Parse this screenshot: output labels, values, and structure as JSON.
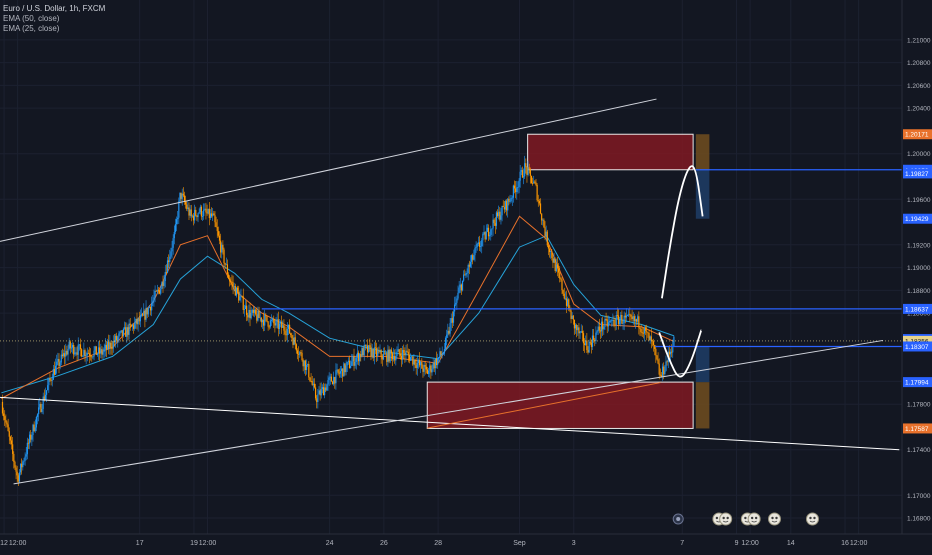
{
  "legend": {
    "symbol": "Euro / U.S. Dollar, 1h, FXCM",
    "ema50": "EMA (50, close)",
    "ema25": "EMA (25, close)"
  },
  "colors": {
    "background": "#131722",
    "candle_up": "#2196f3",
    "candle_down": "#ff9800",
    "ema50": "#26a2d8",
    "ema25": "#e8712b",
    "zone_fill": "#801922",
    "level_line": "#2962ff",
    "trendline": "#d1d4dc",
    "axis_text": "#b2b5be"
  },
  "chart_data": {
    "type": "candlestick",
    "symbol": "Euro / U.S. Dollar",
    "timeframe": "1h",
    "source": "FXCM",
    "indicators": [
      "EMA (50, close)",
      "EMA (25, close)"
    ],
    "ylim": [
      1.1666,
      1.2135
    ],
    "xlim_days": [
      11.85,
      45.1
    ],
    "x_ticks": [
      {
        "label": "12",
        "t": 12.0
      },
      {
        "label": "12:00",
        "t": 12.5
      },
      {
        "label": "17",
        "t": 17.0
      },
      {
        "label": "19",
        "t": 19.0
      },
      {
        "label": "12:00",
        "t": 19.5
      },
      {
        "label": "24",
        "t": 24.0
      },
      {
        "label": "26",
        "t": 26.0
      },
      {
        "label": "28",
        "t": 28.0
      },
      {
        "label": "Sep",
        "t": 31.0
      },
      {
        "label": "3",
        "t": 33.0
      },
      {
        "label": "7",
        "t": 37.0
      },
      {
        "label": "9",
        "t": 39.0
      },
      {
        "label": "12:00",
        "t": 39.5
      },
      {
        "label": "14",
        "t": 41.0
      },
      {
        "label": "16",
        "t": 43.0
      },
      {
        "label": "12:00",
        "t": 43.5
      }
    ],
    "y_ticks": [
      "1.16800",
      "1.17000",
      "1.17400",
      "1.17800",
      "1.18000",
      "1.18600",
      "1.18800",
      "1.19000",
      "1.19200",
      "1.19600",
      "1.20000",
      "1.20400",
      "1.20600",
      "1.20800",
      "1.21000"
    ],
    "price_labels": [
      {
        "value": "1.20171",
        "color": "#e8712b"
      },
      {
        "value": "1.19859",
        "color": "#2962ff"
      },
      {
        "value": "1.19827",
        "color": "#2962ff"
      },
      {
        "value": "1.19429",
        "color": "#2962ff"
      },
      {
        "value": "1.18637",
        "color": "#2962ff"
      },
      {
        "value": "1.18372",
        "color": "#2962ff"
      },
      {
        "value": "1.18356",
        "color": "#e8d48a"
      },
      {
        "value": "1.18307",
        "color": "#2962ff"
      },
      {
        "value": "1.17994",
        "color": "#2962ff"
      },
      {
        "value": "1.17587",
        "color": "#e8712b"
      }
    ],
    "price_path": [
      {
        "t": 11.9,
        "p": 1.1782
      },
      {
        "t": 12.5,
        "p": 1.1715
      },
      {
        "t": 13.2,
        "p": 1.1768
      },
      {
        "t": 13.8,
        "p": 1.1808
      },
      {
        "t": 14.4,
        "p": 1.183
      },
      {
        "t": 15.0,
        "p": 1.1826
      },
      {
        "t": 15.6,
        "p": 1.1825
      },
      {
        "t": 16.3,
        "p": 1.184
      },
      {
        "t": 17.1,
        "p": 1.1855
      },
      {
        "t": 17.8,
        "p": 1.1884
      },
      {
        "t": 18.3,
        "p": 1.193
      },
      {
        "t": 18.5,
        "p": 1.1965
      },
      {
        "t": 18.9,
        "p": 1.1944
      },
      {
        "t": 19.2,
        "p": 1.195
      },
      {
        "t": 19.7,
        "p": 1.1944
      },
      {
        "t": 20.3,
        "p": 1.189
      },
      {
        "t": 21.0,
        "p": 1.186
      },
      {
        "t": 21.8,
        "p": 1.1852
      },
      {
        "t": 22.5,
        "p": 1.1845
      },
      {
        "t": 23.2,
        "p": 1.181
      },
      {
        "t": 23.5,
        "p": 1.1785
      },
      {
        "t": 24.0,
        "p": 1.18
      },
      {
        "t": 24.6,
        "p": 1.1812
      },
      {
        "t": 25.3,
        "p": 1.1828
      },
      {
        "t": 26.0,
        "p": 1.1822
      },
      {
        "t": 26.8,
        "p": 1.1825
      },
      {
        "t": 27.6,
        "p": 1.1808
      },
      {
        "t": 28.2,
        "p": 1.1826
      },
      {
        "t": 28.8,
        "p": 1.1882
      },
      {
        "t": 29.4,
        "p": 1.1915
      },
      {
        "t": 30.0,
        "p": 1.1938
      },
      {
        "t": 30.6,
        "p": 1.1958
      },
      {
        "t": 31.2,
        "p": 1.1988
      },
      {
        "t": 31.6,
        "p": 1.197
      },
      {
        "t": 32.0,
        "p": 1.1925
      },
      {
        "t": 32.6,
        "p": 1.188
      },
      {
        "t": 33.0,
        "p": 1.185
      },
      {
        "t": 33.5,
        "p": 1.183
      },
      {
        "t": 34.0,
        "p": 1.1848
      },
      {
        "t": 34.7,
        "p": 1.1855
      },
      {
        "t": 35.4,
        "p": 1.1852
      },
      {
        "t": 35.9,
        "p": 1.1832
      },
      {
        "t": 36.2,
        "p": 1.1803
      },
      {
        "t": 36.7,
        "p": 1.1836
      }
    ],
    "ema50_path": [
      {
        "t": 11.9,
        "p": 1.179
      },
      {
        "t": 14.0,
        "p": 1.1805
      },
      {
        "t": 16.0,
        "p": 1.1822
      },
      {
        "t": 17.5,
        "p": 1.185
      },
      {
        "t": 18.5,
        "p": 1.189
      },
      {
        "t": 19.5,
        "p": 1.191
      },
      {
        "t": 20.5,
        "p": 1.1895
      },
      {
        "t": 21.5,
        "p": 1.1872
      },
      {
        "t": 22.5,
        "p": 1.186
      },
      {
        "t": 24.0,
        "p": 1.1838
      },
      {
        "t": 26.0,
        "p": 1.1826
      },
      {
        "t": 28.0,
        "p": 1.182
      },
      {
        "t": 29.5,
        "p": 1.186
      },
      {
        "t": 31.0,
        "p": 1.1918
      },
      {
        "t": 32.0,
        "p": 1.1928
      },
      {
        "t": 33.0,
        "p": 1.1885
      },
      {
        "t": 34.0,
        "p": 1.1858
      },
      {
        "t": 35.5,
        "p": 1.185
      },
      {
        "t": 36.7,
        "p": 1.184
      }
    ],
    "ema25_path": [
      {
        "t": 11.9,
        "p": 1.1785
      },
      {
        "t": 14.0,
        "p": 1.1812
      },
      {
        "t": 16.0,
        "p": 1.183
      },
      {
        "t": 17.5,
        "p": 1.187
      },
      {
        "t": 18.5,
        "p": 1.192
      },
      {
        "t": 19.5,
        "p": 1.1928
      },
      {
        "t": 20.5,
        "p": 1.188
      },
      {
        "t": 21.5,
        "p": 1.186
      },
      {
        "t": 22.5,
        "p": 1.1848
      },
      {
        "t": 24.0,
        "p": 1.1822
      },
      {
        "t": 26.0,
        "p": 1.1822
      },
      {
        "t": 28.0,
        "p": 1.1816
      },
      {
        "t": 29.5,
        "p": 1.188
      },
      {
        "t": 31.0,
        "p": 1.1945
      },
      {
        "t": 32.0,
        "p": 1.1925
      },
      {
        "t": 33.0,
        "p": 1.1868
      },
      {
        "t": 34.0,
        "p": 1.185
      },
      {
        "t": 35.5,
        "p": 1.1848
      },
      {
        "t": 36.7,
        "p": 1.1835
      }
    ],
    "horizontal_levels": [
      {
        "value": 1.19859,
        "from_t": 37.5
      },
      {
        "value": 1.18637,
        "from_t": 21.5
      },
      {
        "value": 1.18307,
        "from_t": 36.0
      }
    ],
    "current_price_line": 1.18356,
    "zones": [
      {
        "t1": 31.3,
        "t2": 37.4,
        "p_low": 1.19859,
        "p_high": 1.20171
      },
      {
        "t1": 27.6,
        "t2": 37.4,
        "p_low": 1.17587,
        "p_high": 1.17994
      }
    ],
    "position_boxes": [
      {
        "t1": 37.5,
        "t2": 38.0,
        "p_low": 1.19859,
        "p_high": 1.20171,
        "color": "#6b4a1f"
      },
      {
        "t1": 37.5,
        "t2": 38.0,
        "p_low": 1.19429,
        "p_high": 1.19859,
        "color": "#1e3b63"
      },
      {
        "t1": 37.5,
        "t2": 38.0,
        "p_low": 1.17587,
        "p_high": 1.17994,
        "color": "#6b4a1f"
      },
      {
        "t1": 37.5,
        "t2": 38.0,
        "p_low": 1.17994,
        "p_high": 1.18307,
        "color": "#1e3b63"
      }
    ],
    "trendlines": [
      {
        "from": {
          "t": 11.85,
          "p": 1.1923
        },
        "to": {
          "t": 36.05,
          "p": 1.2048
        },
        "color": "#d1d4dc"
      },
      {
        "from": {
          "t": 11.85,
          "p": 1.1786
        },
        "to": {
          "t": 45.0,
          "p": 1.174
        },
        "color": "#ffffff"
      },
      {
        "from": {
          "t": 12.35,
          "p": 1.171
        },
        "to": {
          "t": 44.4,
          "p": 1.1836
        },
        "color": "#d1d4dc"
      },
      {
        "from": {
          "t": 27.6,
          "p": 1.1759
        },
        "to": {
          "t": 36.2,
          "p": 1.1799
        },
        "color": "#e8712b"
      }
    ],
    "projection_paths": [
      {
        "points": [
          {
            "t": 36.15,
            "p": 1.1843
          },
          {
            "t": 36.5,
            "p": 1.182
          },
          {
            "t": 36.9,
            "p": 1.18
          },
          {
            "t": 37.3,
            "p": 1.1815
          },
          {
            "t": 37.7,
            "p": 1.1845
          }
        ]
      },
      {
        "points": [
          {
            "t": 36.25,
            "p": 1.1873
          },
          {
            "t": 36.55,
            "p": 1.192
          },
          {
            "t": 36.9,
            "p": 1.1965
          },
          {
            "t": 37.25,
            "p": 1.199
          },
          {
            "t": 37.5,
            "p": 1.1988
          },
          {
            "t": 37.75,
            "p": 1.1945
          }
        ]
      }
    ],
    "event_icons": [
      {
        "t": 36.85,
        "kind": "earnings"
      },
      {
        "t": 38.35,
        "kind": "news"
      },
      {
        "t": 38.6,
        "kind": "news"
      },
      {
        "t": 39.4,
        "kind": "news"
      },
      {
        "t": 39.65,
        "kind": "news"
      },
      {
        "t": 40.4,
        "kind": "news"
      },
      {
        "t": 41.8,
        "kind": "news"
      }
    ]
  }
}
